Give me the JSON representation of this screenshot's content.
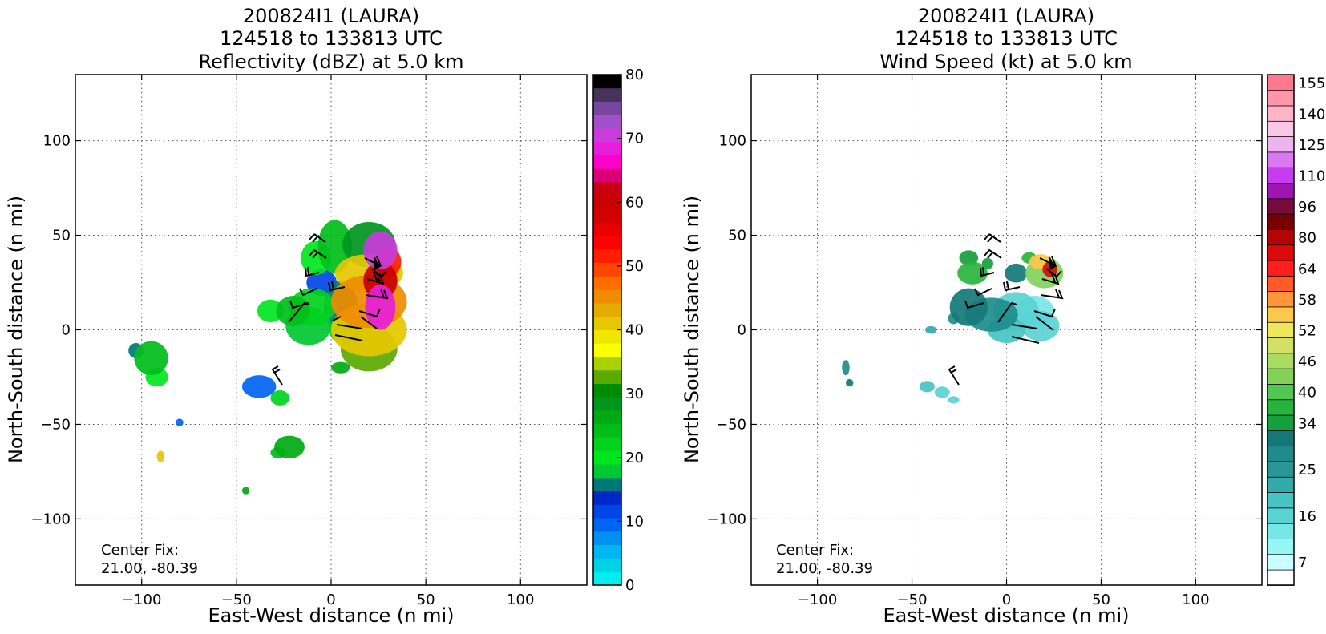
{
  "chart_data": [
    {
      "type": "heatmap",
      "title": [
        "200824I1 (LAURA)",
        "124518 to 133813 UTC",
        "Reflectivity (dBZ) at 5.0 km"
      ],
      "xlabel": "East-West distance (n mi)",
      "ylabel": "North-South distance (n mi)",
      "xlim": [
        -135,
        135
      ],
      "ylim": [
        -135,
        135
      ],
      "xticks": [
        -100,
        -50,
        0,
        50,
        100
      ],
      "yticks": [
        -100,
        -50,
        0,
        50,
        100
      ],
      "xtick_labels": [
        "−100",
        "−50",
        "0",
        "50",
        "100"
      ],
      "ytick_labels": [
        "−100",
        "−50",
        "0",
        "50",
        "100"
      ],
      "grid": true,
      "annotation": [
        "Center Fix:",
        "21.00, -80.39"
      ],
      "colorbar": {
        "min": 0,
        "max": 80,
        "tick_values": [
          0,
          10,
          20,
          30,
          40,
          50,
          60,
          70,
          80
        ],
        "tick_labels": [
          "0",
          "10",
          "20",
          "30",
          "40",
          "50",
          "60",
          "70",
          "80"
        ],
        "colors": [
          "#00eeee",
          "#00d2e6",
          "#00b6f0",
          "#0090f0",
          "#0064f2",
          "#0046e6",
          "#0028c8",
          "#007878",
          "#00c832",
          "#00e61e",
          "#00d21e",
          "#00be19",
          "#00aa14",
          "#00961e",
          "#008c00",
          "#5aaa00",
          "#aad200",
          "#ffff00",
          "#f0e600",
          "#e6c800",
          "#e6aa00",
          "#f08c00",
          "#ff6e00",
          "#ff4600",
          "#ff1e00",
          "#ff0000",
          "#e60000",
          "#d20000",
          "#c80000",
          "#c80014",
          "#dc0078",
          "#ff00c8",
          "#e61edc",
          "#c83cdc",
          "#a050c8",
          "#7846a0",
          "#46325a",
          "#000000"
        ]
      },
      "series": [
        {
          "values": [
            [
              20,
              45,
              14,
              12,
              28
            ],
            [
              20,
              30,
              18,
              10,
              40
            ],
            [
              20,
              15,
              20,
              14,
              45
            ],
            [
              20,
              0,
              20,
              14,
              40
            ],
            [
              20,
              -10,
              15,
              12,
              32
            ],
            [
              26,
              42,
              9,
              10,
              70
            ],
            [
              26,
              26,
              9,
              10,
              60
            ],
            [
              26,
              12,
              8,
              12,
              68
            ],
            [
              30,
              36,
              7,
              8,
              52
            ],
            [
              2,
              44,
              9,
              14,
              24
            ],
            [
              -8,
              38,
              8,
              9,
              20
            ],
            [
              -5,
              25,
              8,
              7,
              12
            ],
            [
              -10,
              12,
              12,
              10,
              22
            ],
            [
              5,
              12,
              9,
              14,
              16
            ],
            [
              8,
              0,
              9,
              8,
              22
            ],
            [
              -20,
              10,
              9,
              8,
              24
            ],
            [
              -32,
              10,
              7,
              6,
              20
            ],
            [
              -12,
              2,
              12,
              10,
              18
            ],
            [
              5,
              -20,
              5,
              3,
              26
            ],
            [
              -38,
              -30,
              9,
              6,
              10
            ],
            [
              -27,
              -36,
              5,
              4,
              22
            ],
            [
              -95,
              -15,
              9,
              9,
              24
            ],
            [
              -103,
              -11,
              4,
              4,
              16
            ],
            [
              -92,
              -25,
              6,
              5,
              20
            ],
            [
              -80,
              -49,
              2,
              2,
              9
            ],
            [
              -90,
              -67,
              2,
              3,
              40
            ],
            [
              -22,
              -62,
              8,
              6,
              26
            ],
            [
              -28,
              -65,
              4,
              3,
              24
            ],
            [
              -45,
              -85,
              2,
              2,
              26
            ]
          ]
        }
      ],
      "barbs_drawn": true
    },
    {
      "type": "heatmap",
      "title": [
        "200824I1 (LAURA)",
        "124518 to 133813 UTC",
        "Wind Speed (kt) at 5.0 km"
      ],
      "xlabel": "East-West distance (n mi)",
      "ylabel": "North-South distance (n mi)",
      "xlim": [
        -135,
        135
      ],
      "ylim": [
        -135,
        135
      ],
      "xticks": [
        -100,
        -50,
        0,
        50,
        100
      ],
      "yticks": [
        -100,
        -50,
        0,
        50,
        100
      ],
      "xtick_labels": [
        "−100",
        "−50",
        "0",
        "50",
        "100"
      ],
      "ytick_labels": [
        "−100",
        "−50",
        "0",
        "50",
        "100"
      ],
      "grid": true,
      "annotation": [
        "Center Fix:",
        "21.00, -80.39"
      ],
      "colorbar": {
        "n_levels": 33,
        "tick_labels": [
          "7",
          "16",
          "25",
          "34",
          "40",
          "46",
          "52",
          "58",
          "64",
          "80",
          "96",
          "110",
          "125",
          "140",
          "155"
        ],
        "tick_levels": [
          1,
          4,
          7,
          10,
          12,
          14,
          16,
          18,
          20,
          22,
          24,
          26,
          28,
          30,
          32
        ],
        "colors": [
          "#ffffff",
          "#c8ffff",
          "#96f5f5",
          "#78e6e6",
          "#5ad2d2",
          "#46c3c3",
          "#32aaaa",
          "#289696",
          "#1e8c8c",
          "#147878",
          "#14a03c",
          "#28b43c",
          "#50c850",
          "#82d25a",
          "#aadc64",
          "#d2e164",
          "#f0e65a",
          "#ffc84b",
          "#ff963c",
          "#ff5a28",
          "#ff1e1e",
          "#dc0a0a",
          "#b40505",
          "#780000",
          "#780a3c",
          "#a014b4",
          "#c83cf0",
          "#dc78f0",
          "#eeb4f0",
          "#f8c8e6",
          "#ffb4c8",
          "#ff96aa",
          "#ff788c",
          "#f05a6e",
          "#dc3c50",
          "#c81e3c",
          "#a0143c"
        ]
      },
      "series": [
        {
          "values": [
            [
              -20,
              12,
              10,
              10,
              9
            ],
            [
              -8,
              8,
              14,
              9,
              8
            ],
            [
              5,
              10,
              12,
              10,
              4
            ],
            [
              15,
              10,
              10,
              8,
              3
            ],
            [
              18,
              2,
              10,
              8,
              4
            ],
            [
              0,
              0,
              10,
              7,
              5
            ],
            [
              -18,
              30,
              8,
              6,
              11
            ],
            [
              -20,
              38,
              5,
              4,
              10
            ],
            [
              -10,
              35,
              3,
              3,
              10
            ],
            [
              5,
              30,
              6,
              5,
              9
            ],
            [
              -28,
              6,
              3,
              3,
              8
            ],
            [
              20,
              30,
              10,
              8,
              13
            ],
            [
              18,
              36,
              6,
              4,
              17
            ],
            [
              23,
              32,
              4,
              4,
              21
            ],
            [
              12,
              38,
              4,
              3,
              11
            ],
            [
              -42,
              -30,
              4,
              3,
              5
            ],
            [
              -34,
              -33,
              4,
              3,
              4
            ],
            [
              -28,
              -37,
              3,
              2,
              4
            ],
            [
              -85,
              -20,
              2,
              4,
              8
            ],
            [
              -83,
              -28,
              2,
              2,
              9
            ],
            [
              -40,
              0,
              3,
              2,
              6
            ]
          ]
        }
      ],
      "barbs_drawn": true
    }
  ]
}
